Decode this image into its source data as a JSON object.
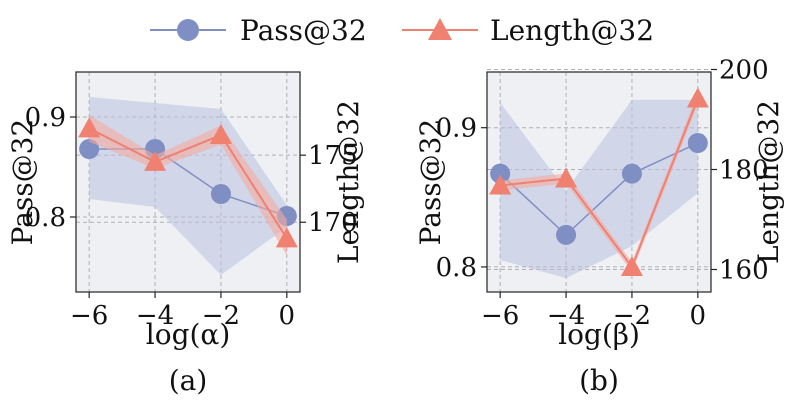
{
  "legend": {
    "series1_label": "Pass@32",
    "series2_label": "Length@32"
  },
  "colors": {
    "pass": "#7f8fc4",
    "pass_band": "#b9c1df",
    "length": "#f08070",
    "length_band": "#f4aaa0",
    "panel_bg": "#eef0f4",
    "grid": "#b0b0b0"
  },
  "chart_data": [
    {
      "type": "line",
      "subtitle": "(a)",
      "xlabel": "log(α)",
      "ylabel_left": "Pass@32",
      "ylabel_right": "Length@32",
      "x": [
        -6,
        -4,
        -2,
        0
      ],
      "xticks": [
        -6,
        -4,
        -2,
        0
      ],
      "xtick_labels": [
        "−6",
        "−4",
        "−2",
        "0"
      ],
      "xlim": [
        -6.4,
        0.4
      ],
      "ylim_left": [
        0.725,
        0.945
      ],
      "yticks_left": [
        0.8,
        0.9
      ],
      "ytick_labels_left": [
        "0.8",
        "0.9"
      ],
      "ylim_right": [
        164.8,
        181.2
      ],
      "yticks_right": [
        170,
        175
      ],
      "ytick_labels_right": [
        "170",
        "175"
      ],
      "series": [
        {
          "name": "Pass@32",
          "axis": "left",
          "marker": "circle",
          "values": [
            0.868,
            0.868,
            0.823,
            0.801
          ],
          "band_low": [
            0.818,
            0.81,
            0.742,
            0.79
          ],
          "band_high": [
            0.92,
            0.914,
            0.908,
            0.812
          ]
        },
        {
          "name": "Length@32",
          "axis": "right",
          "marker": "triangle",
          "values": [
            177.0,
            174.5,
            176.5,
            168.8
          ],
          "band_low": [
            176.0,
            174.0,
            175.8,
            167.5
          ],
          "band_high": [
            178.0,
            175.0,
            177.2,
            170.2
          ]
        }
      ]
    },
    {
      "type": "line",
      "subtitle": "(b)",
      "xlabel": "log(β)",
      "ylabel_left": "Pass@32",
      "ylabel_right": "Length@32",
      "x": [
        -6,
        -4,
        -2,
        0
      ],
      "xticks": [
        -6,
        -4,
        -2,
        0
      ],
      "xtick_labels": [
        "−6",
        "−4",
        "−2",
        "0"
      ],
      "xlim": [
        -6.4,
        0.4
      ],
      "ylim_left": [
        0.782,
        0.94
      ],
      "yticks_left": [
        0.8,
        0.9
      ],
      "ytick_labels_left": [
        "0.8",
        "0.9"
      ],
      "ylim_right": [
        155.5,
        199.5
      ],
      "yticks_right": [
        160,
        180,
        200
      ],
      "ytick_labels_right": [
        "160",
        "180",
        "200"
      ],
      "series": [
        {
          "name": "Pass@32",
          "axis": "left",
          "marker": "circle",
          "values": [
            0.867,
            0.823,
            0.867,
            0.889
          ],
          "band_low": [
            0.805,
            0.792,
            0.815,
            0.853
          ],
          "band_high": [
            0.918,
            0.855,
            0.92,
            0.92
          ]
        },
        {
          "name": "Length@32",
          "axis": "right",
          "marker": "triangle",
          "values": [
            176.8,
            178.2,
            160.5,
            194.2
          ],
          "band_low": [
            175.8,
            177.2,
            159.5,
            193.0
          ],
          "band_high": [
            177.8,
            179.2,
            161.5,
            195.4
          ]
        }
      ]
    }
  ]
}
